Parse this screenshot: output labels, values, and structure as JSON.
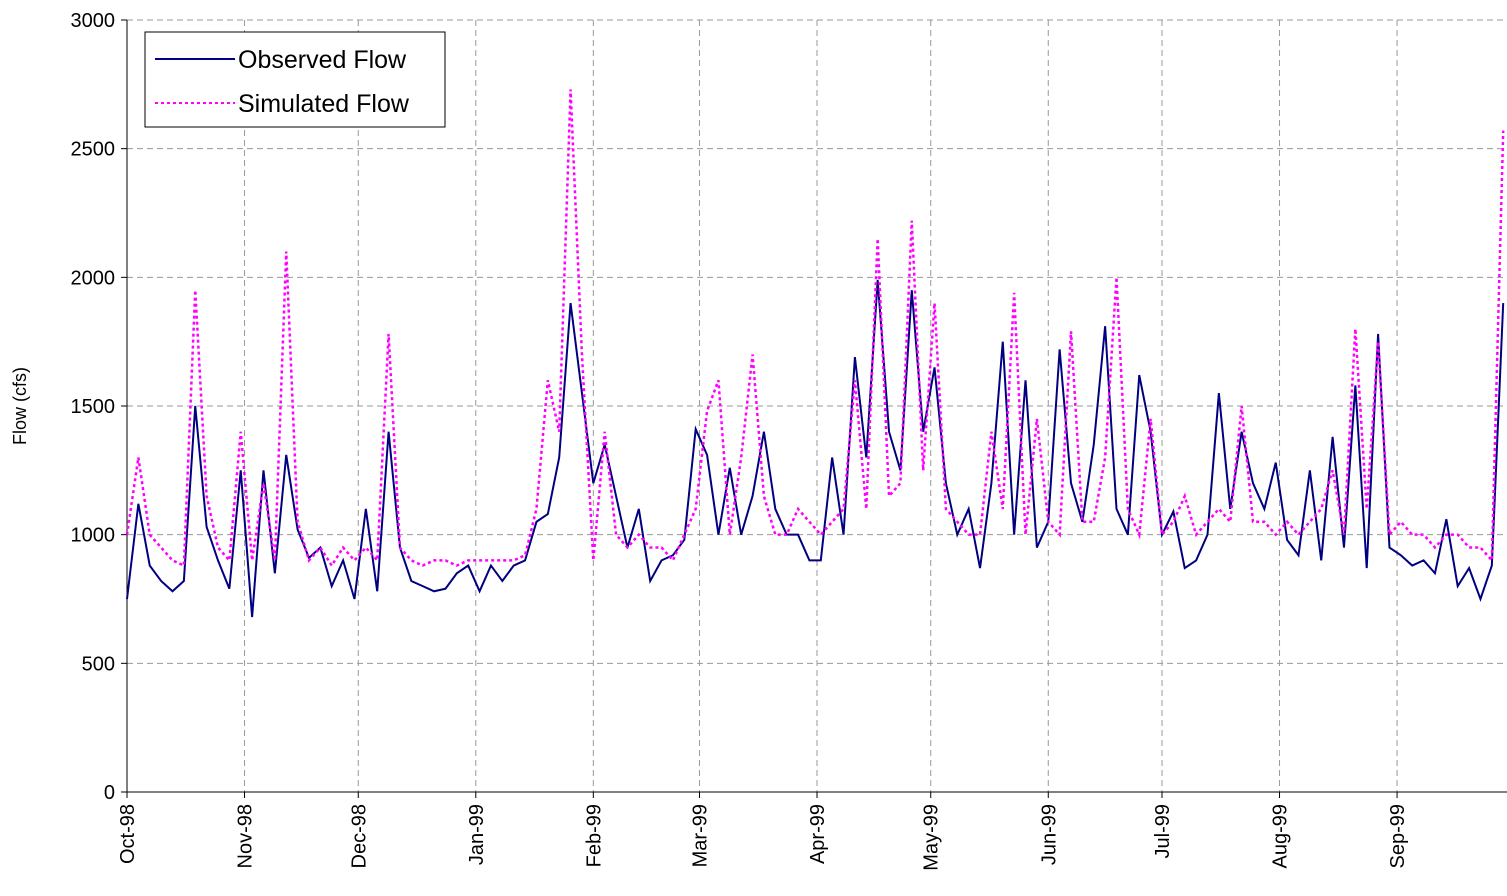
{
  "chart_data": {
    "type": "line",
    "y_label": "Flow (cfs)",
    "x": [
      0,
      3,
      6,
      9,
      12,
      15,
      18,
      21,
      24,
      27,
      30,
      33,
      36,
      39,
      42,
      45,
      48,
      51,
      54,
      57,
      60,
      63,
      66,
      69,
      72,
      75,
      78,
      81,
      84,
      87,
      90,
      93,
      96,
      99,
      102,
      105,
      108,
      111,
      114,
      117,
      120,
      123,
      126,
      129,
      132,
      135,
      138,
      141,
      144,
      147,
      150,
      153,
      156,
      159,
      162,
      165,
      168,
      171,
      174,
      177,
      180,
      183,
      186,
      189,
      192,
      195,
      198,
      201,
      204,
      207,
      210,
      213,
      216,
      219,
      222,
      225,
      228,
      231,
      234,
      237,
      240,
      243,
      246,
      249,
      252,
      255,
      258,
      261,
      264,
      267,
      270,
      273,
      276,
      279,
      282,
      285,
      288,
      291,
      294,
      297,
      300,
      303,
      306,
      309,
      312,
      315,
      318,
      321,
      324,
      327,
      330,
      333,
      336,
      339,
      342,
      345,
      348,
      351,
      354,
      357,
      360,
      363
    ],
    "series": [
      {
        "name": "Observed Flow",
        "color": "#000080",
        "dash": "solid",
        "values": [
          750,
          1120,
          880,
          820,
          780,
          820,
          1500,
          1030,
          900,
          790,
          1250,
          680,
          1250,
          850,
          1310,
          1020,
          910,
          950,
          800,
          900,
          750,
          1100,
          780,
          1400,
          950,
          820,
          800,
          780,
          790,
          850,
          880,
          780,
          880,
          820,
          880,
          900,
          1050,
          1080,
          1300,
          1900,
          1550,
          1200,
          1350,
          1150,
          950,
          1100,
          820,
          900,
          920,
          980,
          1410,
          1310,
          1000,
          1260,
          1000,
          1150,
          1400,
          1100,
          1000,
          1000,
          900,
          900,
          1300,
          1000,
          1690,
          1300,
          1990,
          1400,
          1250,
          1950,
          1400,
          1650,
          1200,
          1000,
          1100,
          870,
          1200,
          1750,
          1000,
          1600,
          950,
          1050,
          1720,
          1200,
          1050,
          1350,
          1810,
          1100,
          1000,
          1620,
          1400,
          1000,
          1090,
          870,
          900,
          1000,
          1550,
          1100,
          1400,
          1200,
          1100,
          1280,
          980,
          920,
          1250,
          900,
          1380,
          950,
          1580,
          870,
          1780,
          950,
          920,
          880,
          900,
          850,
          1060,
          800,
          870,
          750,
          880,
          1900
        ]
      },
      {
        "name": "Simulated Flow",
        "color": "#ff00ff",
        "dash": "dotted",
        "values": [
          1000,
          1300,
          1000,
          950,
          900,
          880,
          1950,
          1150,
          950,
          900,
          1400,
          900,
          1200,
          900,
          2100,
          1050,
          900,
          950,
          880,
          950,
          900,
          950,
          900,
          1780,
          950,
          900,
          880,
          900,
          900,
          880,
          900,
          900,
          900,
          900,
          900,
          920,
          1100,
          1600,
          1400,
          2730,
          1700,
          900,
          1400,
          1000,
          950,
          1000,
          950,
          950,
          900,
          1000,
          1100,
          1480,
          1600,
          1000,
          1300,
          1700,
          1150,
          1000,
          1000,
          1100,
          1050,
          1000,
          1050,
          1100,
          1600,
          1100,
          2150,
          1150,
          1200,
          2220,
          1250,
          1900,
          1100,
          1050,
          1000,
          1000,
          1400,
          1100,
          1940,
          1000,
          1450,
          1050,
          1000,
          1790,
          1050,
          1050,
          1300,
          2000,
          1100,
          1000,
          1450,
          1000,
          1050,
          1150,
          1000,
          1050,
          1100,
          1050,
          1500,
          1050,
          1050,
          1000,
          1050,
          1000,
          1050,
          1100,
          1250,
          1000,
          1800,
          1100,
          1750,
          1000,
          1050,
          1000,
          1000,
          950,
          1000,
          1000,
          950,
          950,
          900,
          2570
        ]
      }
    ],
    "xlim": [
      0,
      364
    ],
    "xticks": [
      {
        "value": 0,
        "label": "Oct-98"
      },
      {
        "value": 31,
        "label": "Nov-98"
      },
      {
        "value": 61,
        "label": "Dec-98"
      },
      {
        "value": 92,
        "label": "Jan-99"
      },
      {
        "value": 123,
        "label": "Feb-99"
      },
      {
        "value": 151,
        "label": "Mar-99"
      },
      {
        "value": 182,
        "label": "Apr-99"
      },
      {
        "value": 212,
        "label": "May-99"
      },
      {
        "value": 243,
        "label": "Jun-99"
      },
      {
        "value": 273,
        "label": "Jul-99"
      },
      {
        "value": 304,
        "label": "Aug-99"
      },
      {
        "value": 335,
        "label": "Sep-99"
      }
    ],
    "ylim": [
      0,
      3000
    ],
    "yticks": [
      0,
      500,
      1000,
      1500,
      2000,
      2500,
      3000
    ],
    "grid": true,
    "legend": "top-left"
  }
}
